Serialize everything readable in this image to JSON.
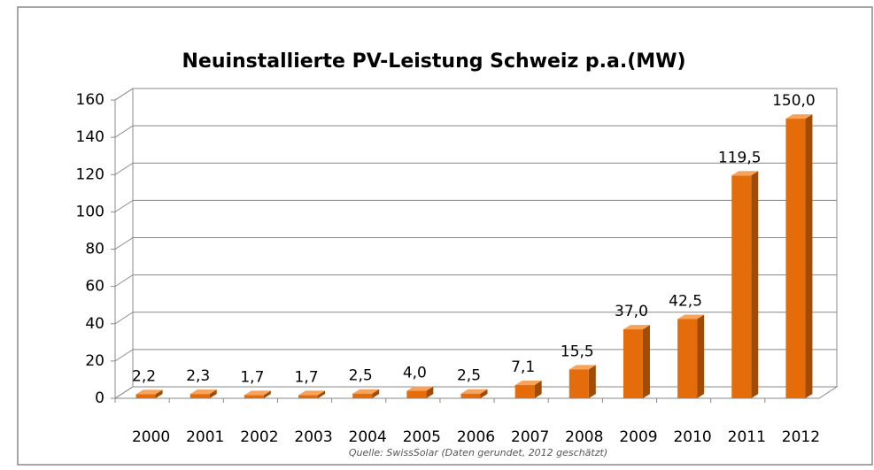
{
  "chart_data": {
    "type": "bar3d",
    "title": "Neuinstallierte PV-Leistung Schweiz p.a.(MW)",
    "categories": [
      "2000",
      "2001",
      "2002",
      "2003",
      "2004",
      "2005",
      "2006",
      "2007",
      "2008",
      "2009",
      "2010",
      "2011",
      "2012"
    ],
    "values": [
      2.2,
      2.3,
      1.7,
      1.7,
      2.5,
      4.0,
      2.5,
      7.1,
      15.5,
      37.0,
      42.5,
      119.5,
      150.0
    ],
    "value_labels": [
      "2,2",
      "2,3",
      "1,7",
      "1,7",
      "2,5",
      "4,0",
      "2,5",
      "7,1",
      "15,5",
      "37,0",
      "42,5",
      "119,5",
      "150,0"
    ],
    "color": "#e46c0a",
    "ylim": [
      0,
      160
    ],
    "yticks": [
      0,
      20,
      40,
      60,
      80,
      100,
      120,
      140,
      160
    ],
    "grid": true,
    "source": "Quelle: SwissSolar (Daten gerundet, 2012 geschätzt)"
  }
}
